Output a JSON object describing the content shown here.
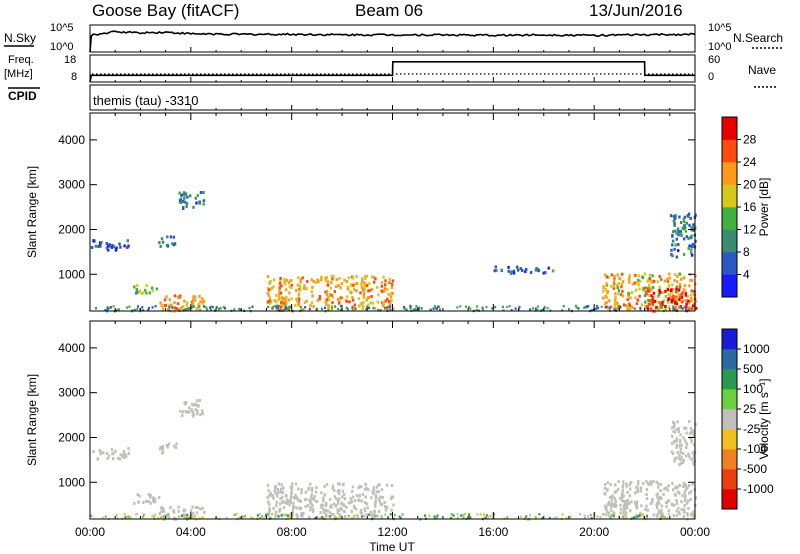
{
  "header": {
    "station": "Goose Bay (fitACF)",
    "beam": "Beam 06",
    "date": "13/Jun/2016"
  },
  "sky_panel": {
    "left_label": "N.Sky",
    "right_label": "N.Search",
    "tick_top": "10^5",
    "tick_bottom": "10^0"
  },
  "freq_panel": {
    "left_label_1": "Freq.",
    "left_label_2": "[MHz]",
    "right_label": "Nave",
    "left_tick_top": "18",
    "left_tick_bottom": "8",
    "right_tick_top": "60",
    "right_tick_bottom": "0"
  },
  "cpid_panel": {
    "label": "CPID",
    "text": "themis (tau) -3310"
  },
  "power_colorbar": {
    "label": "Power [dB]",
    "ticks": [
      "4",
      "8",
      "12",
      "16",
      "20",
      "24",
      "28"
    ],
    "colors": [
      "#1a1aff",
      "#2a56c8",
      "#3a8c6e",
      "#40b040",
      "#d6c81a",
      "#ff9a1a",
      "#ff4a10",
      "#e60000"
    ]
  },
  "velocity_colorbar": {
    "label": "Velocity [m s⁻¹]",
    "ticks": [
      "1000",
      "500",
      "100",
      "25",
      "-25",
      "-100",
      "-500",
      "-1000"
    ],
    "colors": [
      "#1a1ad9",
      "#2a6aa0",
      "#2a9a50",
      "#6ad040",
      "#c0c0b8",
      "#f0c020",
      "#f08020",
      "#e84010",
      "#e00000"
    ]
  },
  "x_axis": {
    "label": "Time UT",
    "ticks": [
      "00:00",
      "04:00",
      "08:00",
      "12:00",
      "16:00",
      "20:00",
      "00:00"
    ]
  },
  "chart_data": {
    "type": "heatmap",
    "panels": [
      {
        "name": "Power",
        "ylabel": "Slant Range [km]",
        "xlabel": "Time UT",
        "yticks": [
          1000,
          2000,
          3000,
          4000
        ],
        "ylim": [
          180,
          4600
        ],
        "xlim_hours": [
          0,
          24
        ],
        "color_scale": {
          "label": "Power [dB]",
          "range": [
            0,
            30
          ]
        },
        "regions": [
          {
            "t0": 0.0,
            "t1": 1.5,
            "r0": 1550,
            "r1": 1800,
            "value": 6
          },
          {
            "t0": 2.7,
            "t1": 3.4,
            "r0": 1650,
            "r1": 1900,
            "value": 9
          },
          {
            "t0": 1.7,
            "t1": 2.7,
            "r0": 600,
            "r1": 800,
            "value": 14
          },
          {
            "t0": 2.7,
            "t1": 4.5,
            "r0": 200,
            "r1": 560,
            "value": 21
          },
          {
            "t0": 7.0,
            "t1": 12.0,
            "r0": 250,
            "r1": 1000,
            "value": 20
          },
          {
            "t0": 16.0,
            "t1": 18.5,
            "r0": 1050,
            "r1": 1200,
            "value": 7
          },
          {
            "t0": 20.3,
            "t1": 24.0,
            "r0": 250,
            "r1": 1050,
            "value": 19
          },
          {
            "t0": 22.0,
            "t1": 24.0,
            "r0": 200,
            "r1": 700,
            "value": 26
          },
          {
            "t0": 23.0,
            "t1": 24.0,
            "r0": 1400,
            "r1": 2400,
            "value": 8
          },
          {
            "t0": 3.5,
            "t1": 4.5,
            "r0": 2500,
            "r1": 2900,
            "value": 8
          }
        ]
      },
      {
        "name": "Velocity",
        "ylabel": "Slant Range [km]",
        "xlabel": "Time UT",
        "yticks": [
          1000,
          2000,
          3000,
          4000
        ],
        "ylim": [
          180,
          4600
        ],
        "xlim_hours": [
          0,
          24
        ],
        "color_scale": {
          "label": "Velocity [m s⁻¹]",
          "range": [
            -1000,
            1000
          ]
        },
        "regions": [
          {
            "t0": 0.0,
            "t1": 1.5,
            "r0": 1550,
            "r1": 1800,
            "value": 0
          },
          {
            "t0": 2.7,
            "t1": 3.4,
            "r0": 1650,
            "r1": 1900,
            "value": 0
          },
          {
            "t0": 1.7,
            "t1": 2.7,
            "r0": 550,
            "r1": 800,
            "value": 80
          },
          {
            "t0": 2.7,
            "t1": 4.5,
            "r0": 200,
            "r1": 500,
            "value": 0
          },
          {
            "t0": 7.0,
            "t1": 12.0,
            "r0": 250,
            "r1": 1000,
            "value": 0
          },
          {
            "t0": 20.3,
            "t1": 24.0,
            "r0": 250,
            "r1": 1050,
            "value": 0
          },
          {
            "t0": 23.0,
            "t1": 24.0,
            "r0": 1400,
            "r1": 2400,
            "value": -60
          },
          {
            "t0": 3.5,
            "t1": 4.5,
            "r0": 2500,
            "r1": 2900,
            "value": -80
          }
        ]
      }
    ],
    "cpid_series": {
      "type": "line",
      "description_text": "themis (tau) -3310"
    },
    "frequency_series": {
      "type": "step",
      "x_hours": [
        0,
        0.05,
        12,
        12.01,
        22,
        22.01,
        24
      ],
      "y_mhz": [
        8,
        10.5,
        10.5,
        15.5,
        15.5,
        10.5,
        10.5
      ]
    },
    "sky_noise_series": {
      "type": "line",
      "x_hours": [
        0,
        0.05,
        1,
        2,
        3,
        4,
        6,
        8,
        10,
        12,
        14,
        16,
        18,
        20,
        22,
        24
      ],
      "y_log": [
        0,
        3.2,
        3.9,
        3.7,
        3.8,
        3.5,
        3.4,
        3.4,
        3.3,
        3.3,
        3.3,
        3.2,
        3.3,
        3.2,
        3.3,
        3.4
      ]
    }
  }
}
